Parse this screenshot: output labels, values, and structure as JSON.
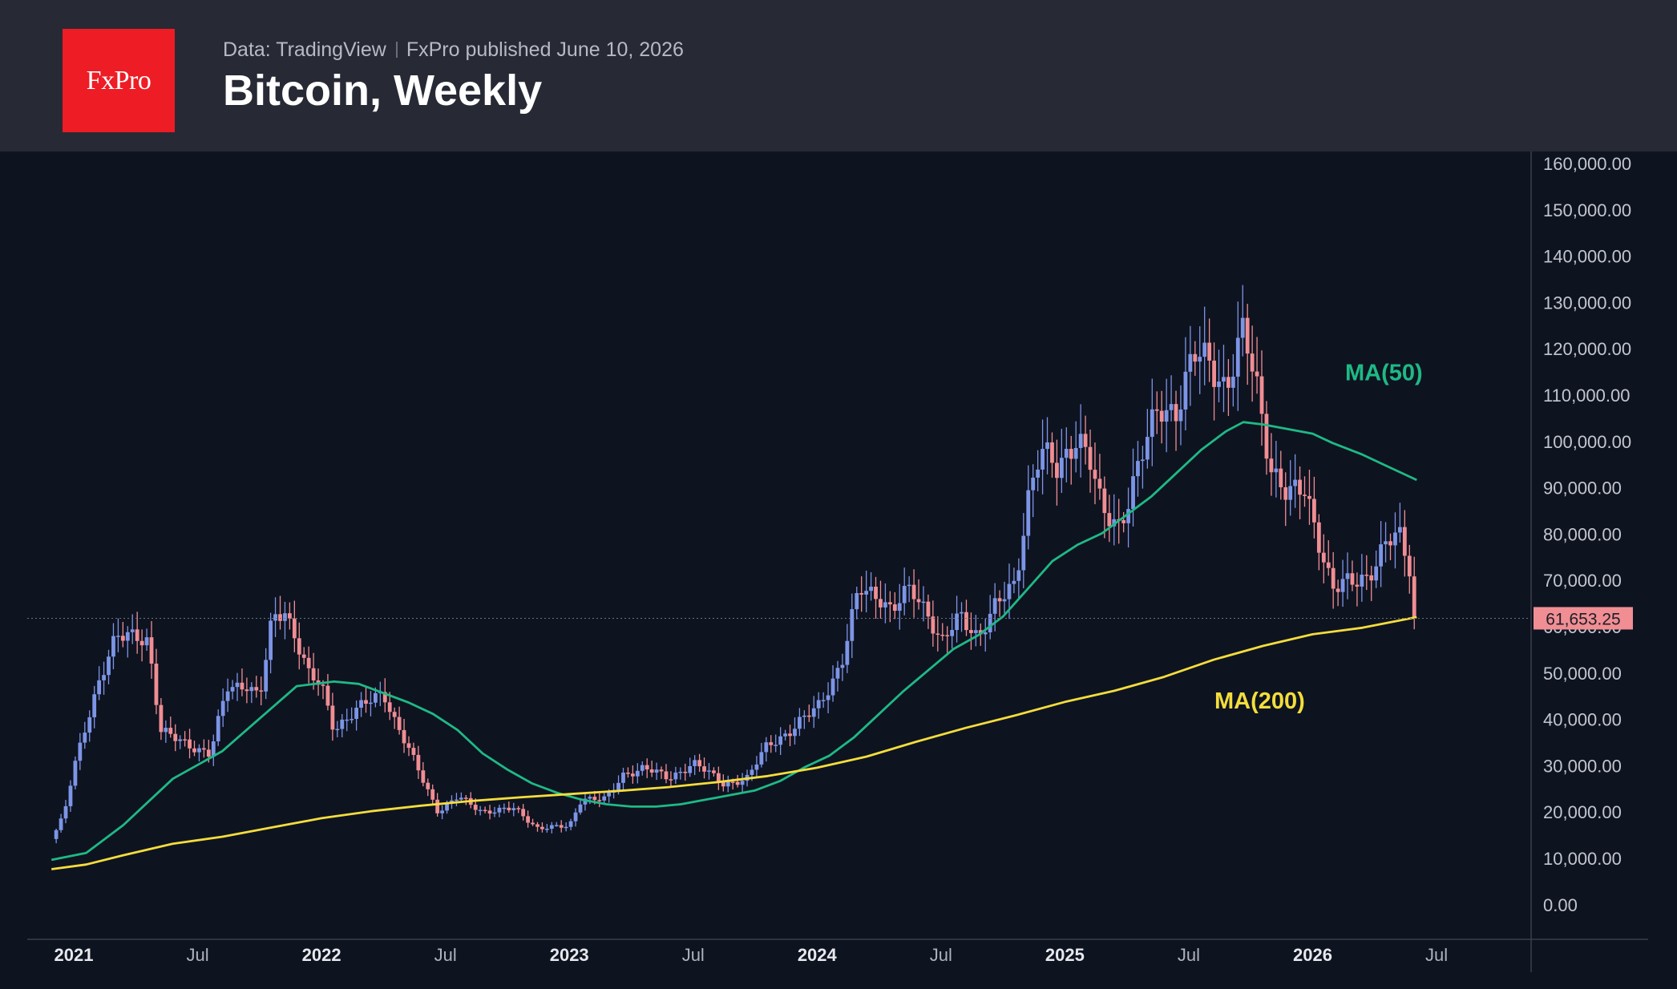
{
  "header": {
    "logo_text": "FxPro",
    "source": "Data: TradingView",
    "published": "FxPro published June 10, 2026",
    "title": "Bitcoin, Weekly"
  },
  "colors": {
    "background": "#0e1320",
    "header_bg": "#272a35",
    "logo_bg": "#ee1c25",
    "up_candle": "#7c95e6",
    "down_candle": "#f08e93",
    "ma50": "#1fb985",
    "ma200": "#f3dd3c",
    "price_tag": "#f08e93"
  },
  "chart_data": {
    "type": "candlestick",
    "timeframe": "weekly",
    "y_axis": {
      "min": 0,
      "max": 160000,
      "step": 10000,
      "ticks": [
        "160,000.00",
        "150,000.00",
        "140,000.00",
        "130,000.00",
        "120,000.00",
        "110,000.00",
        "100,000.00",
        "90,000.00",
        "80,000.00",
        "70,000.00",
        "60,000.00",
        "50,000.00",
        "40,000.00",
        "30,000.00",
        "20,000.00",
        "10,000.00",
        "0.00"
      ]
    },
    "x_axis": {
      "labels": [
        {
          "text": "2021",
          "t": 2021.0,
          "bold": true
        },
        {
          "text": "Jul",
          "t": 2021.5,
          "bold": false
        },
        {
          "text": "2022",
          "t": 2022.0,
          "bold": true
        },
        {
          "text": "Jul",
          "t": 2022.5,
          "bold": false
        },
        {
          "text": "2023",
          "t": 2023.0,
          "bold": true
        },
        {
          "text": "Jul",
          "t": 2023.5,
          "bold": false
        },
        {
          "text": "2024",
          "t": 2024.0,
          "bold": true
        },
        {
          "text": "Jul",
          "t": 2024.5,
          "bold": false
        },
        {
          "text": "2025",
          "t": 2025.0,
          "bold": true
        },
        {
          "text": "Jul",
          "t": 2025.5,
          "bold": false
        },
        {
          "text": "2026",
          "t": 2026.0,
          "bold": true
        },
        {
          "text": "Jul",
          "t": 2026.5,
          "bold": false
        }
      ]
    },
    "price_path": [
      [
        2020.91,
        14000
      ],
      [
        2020.96,
        19000
      ],
      [
        2021.0,
        29000
      ],
      [
        2021.05,
        39000
      ],
      [
        2021.1,
        48000
      ],
      [
        2021.17,
        57000
      ],
      [
        2021.25,
        58500
      ],
      [
        2021.3,
        57000
      ],
      [
        2021.35,
        37000
      ],
      [
        2021.45,
        35000
      ],
      [
        2021.55,
        32000
      ],
      [
        2021.62,
        47000
      ],
      [
        2021.7,
        47500
      ],
      [
        2021.75,
        44000
      ],
      [
        2021.8,
        61000
      ],
      [
        2021.85,
        64000
      ],
      [
        2021.9,
        57000
      ],
      [
        2021.95,
        49000
      ],
      [
        2022.0,
        47000
      ],
      [
        2022.05,
        38000
      ],
      [
        2022.15,
        42000
      ],
      [
        2022.25,
        46000
      ],
      [
        2022.3,
        39000
      ],
      [
        2022.38,
        30000
      ],
      [
        2022.47,
        20000
      ],
      [
        2022.55,
        23000
      ],
      [
        2022.65,
        20000
      ],
      [
        2022.78,
        20500
      ],
      [
        2022.87,
        16500
      ],
      [
        2023.0,
        16600
      ],
      [
        2023.05,
        23000
      ],
      [
        2023.15,
        22500
      ],
      [
        2023.22,
        28000
      ],
      [
        2023.3,
        29500
      ],
      [
        2023.4,
        27000
      ],
      [
        2023.5,
        30500
      ],
      [
        2023.62,
        26000
      ],
      [
        2023.72,
        27000
      ],
      [
        2023.8,
        34500
      ],
      [
        2023.9,
        37500
      ],
      [
        2024.0,
        42500
      ],
      [
        2024.1,
        52000
      ],
      [
        2024.17,
        68000
      ],
      [
        2024.25,
        67000
      ],
      [
        2024.3,
        63000
      ],
      [
        2024.38,
        68000
      ],
      [
        2024.45,
        63000
      ],
      [
        2024.5,
        56000
      ],
      [
        2024.58,
        62000
      ],
      [
        2024.65,
        58000
      ],
      [
        2024.72,
        64000
      ],
      [
        2024.8,
        69000
      ],
      [
        2024.85,
        88000
      ],
      [
        2024.9,
        98000
      ],
      [
        2024.97,
        93000
      ],
      [
        2025.05,
        102000
      ],
      [
        2025.1,
        96000
      ],
      [
        2025.15,
        84000
      ],
      [
        2025.22,
        82000
      ],
      [
        2025.3,
        95000
      ],
      [
        2025.38,
        107000
      ],
      [
        2025.45,
        107000
      ],
      [
        2025.52,
        118000
      ],
      [
        2025.58,
        117000
      ],
      [
        2025.65,
        112000
      ],
      [
        2025.72,
        123000
      ],
      [
        2025.78,
        110000
      ],
      [
        2025.83,
        95000
      ],
      [
        2025.9,
        88000
      ],
      [
        2025.97,
        89000
      ],
      [
        2026.03,
        78000
      ],
      [
        2026.08,
        68000
      ],
      [
        2026.15,
        69000
      ],
      [
        2026.22,
        71000
      ],
      [
        2026.3,
        78000
      ],
      [
        2026.35,
        79000
      ],
      [
        2026.39,
        73000
      ],
      [
        2026.42,
        61653
      ]
    ],
    "series": [
      {
        "name": "MA(50)",
        "values": [
          [
            2020.91,
            9500
          ],
          [
            2021.05,
            11000
          ],
          [
            2021.2,
            17000
          ],
          [
            2021.4,
            27000
          ],
          [
            2021.6,
            33000
          ],
          [
            2021.75,
            40000
          ],
          [
            2021.9,
            47000
          ],
          [
            2022.05,
            48000
          ],
          [
            2022.15,
            47500
          ],
          [
            2022.25,
            45500
          ],
          [
            2022.35,
            43500
          ],
          [
            2022.45,
            41000
          ],
          [
            2022.55,
            37500
          ],
          [
            2022.65,
            32500
          ],
          [
            2022.75,
            29000
          ],
          [
            2022.85,
            26000
          ],
          [
            2022.95,
            24000
          ],
          [
            2023.05,
            22500
          ],
          [
            2023.15,
            21500
          ],
          [
            2023.25,
            21000
          ],
          [
            2023.35,
            21000
          ],
          [
            2023.45,
            21500
          ],
          [
            2023.55,
            22500
          ],
          [
            2023.65,
            23500
          ],
          [
            2023.75,
            24500
          ],
          [
            2023.85,
            26500
          ],
          [
            2023.95,
            29500
          ],
          [
            2024.05,
            32000
          ],
          [
            2024.15,
            36000
          ],
          [
            2024.25,
            41000
          ],
          [
            2024.35,
            46000
          ],
          [
            2024.45,
            50500
          ],
          [
            2024.55,
            55000
          ],
          [
            2024.65,
            58000
          ],
          [
            2024.75,
            62000
          ],
          [
            2024.85,
            68000
          ],
          [
            2024.95,
            74000
          ],
          [
            2025.05,
            77500
          ],
          [
            2025.15,
            80000
          ],
          [
            2025.25,
            84000
          ],
          [
            2025.35,
            88000
          ],
          [
            2025.45,
            93000
          ],
          [
            2025.55,
            98000
          ],
          [
            2025.65,
            102000
          ],
          [
            2025.72,
            104000
          ],
          [
            2025.8,
            103500
          ],
          [
            2025.9,
            102500
          ],
          [
            2026.0,
            101500
          ],
          [
            2026.08,
            99500
          ],
          [
            2026.2,
            97000
          ],
          [
            2026.3,
            94500
          ],
          [
            2026.42,
            91500
          ]
        ]
      },
      {
        "name": "MA(200)",
        "values": [
          [
            2020.91,
            7500
          ],
          [
            2021.05,
            8500
          ],
          [
            2021.2,
            10500
          ],
          [
            2021.4,
            13000
          ],
          [
            2021.6,
            14500
          ],
          [
            2021.8,
            16500
          ],
          [
            2022.0,
            18500
          ],
          [
            2022.2,
            20000
          ],
          [
            2022.4,
            21200
          ],
          [
            2022.6,
            22200
          ],
          [
            2022.8,
            23000
          ],
          [
            2023.0,
            23700
          ],
          [
            2023.2,
            24400
          ],
          [
            2023.4,
            25200
          ],
          [
            2023.6,
            26300
          ],
          [
            2023.8,
            27600
          ],
          [
            2024.0,
            29400
          ],
          [
            2024.2,
            31800
          ],
          [
            2024.4,
            35000
          ],
          [
            2024.6,
            38000
          ],
          [
            2024.8,
            40700
          ],
          [
            2025.0,
            43600
          ],
          [
            2025.2,
            46000
          ],
          [
            2025.4,
            49000
          ],
          [
            2025.6,
            52700
          ],
          [
            2025.8,
            55700
          ],
          [
            2026.0,
            58200
          ],
          [
            2026.2,
            59600
          ],
          [
            2026.42,
            61900
          ]
        ]
      }
    ],
    "last_price": 61653.25,
    "last_price_label": "61,653.25",
    "annotations": [
      {
        "text": "MA(50)",
        "series": "MA(50)"
      },
      {
        "text": "MA(200)",
        "series": "MA(200)"
      }
    ]
  }
}
